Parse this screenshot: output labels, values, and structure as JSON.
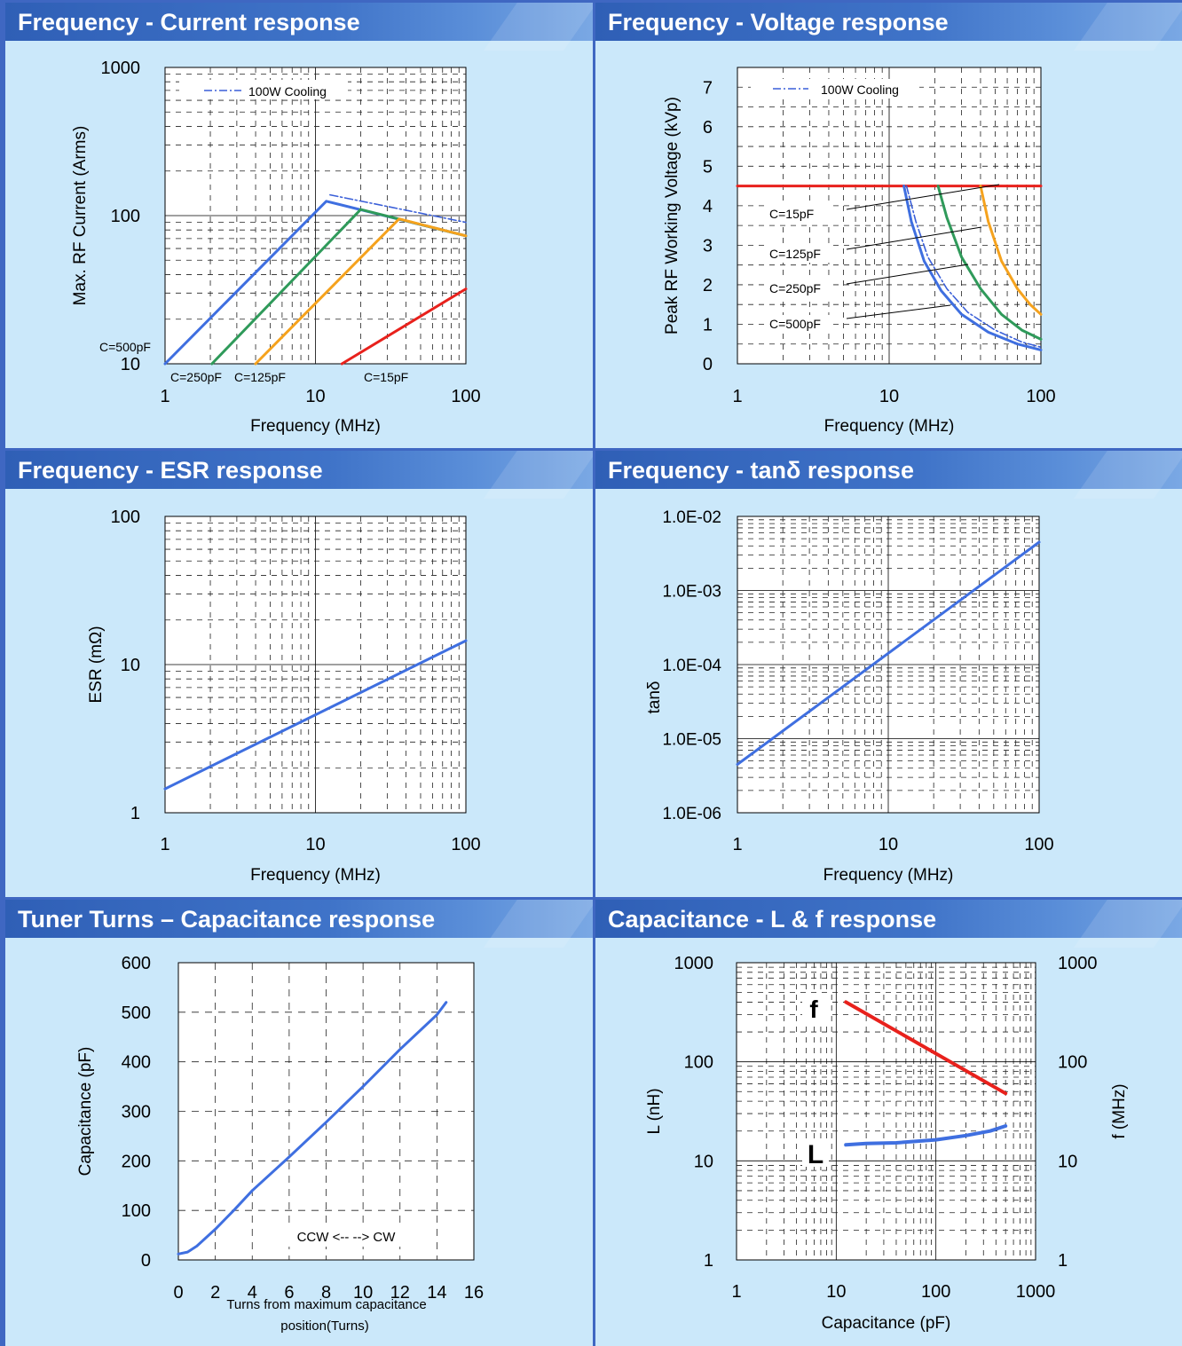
{
  "colors": {
    "panel_bg": "#cbe8fa",
    "header": "#3a6cc2",
    "blue": "#3f6fe0",
    "green": "#2f9a5a",
    "orange": "#f5a21d",
    "red": "#e8211c"
  },
  "chart_data": [
    {
      "type": "line",
      "title": "Frequency - Current response",
      "xlabel": "Frequency (MHz)",
      "ylabel": "Max. RF Current (Arms)",
      "xscale": "log",
      "yscale": "log",
      "xlim": [
        1,
        100
      ],
      "ylim": [
        10,
        1000
      ],
      "x_ticks": [
        "1",
        "10",
        "100"
      ],
      "y_ticks": [
        "10",
        "100",
        "1000"
      ],
      "legend": {
        "label": "100W Cooling",
        "position": "top-left"
      },
      "series": [
        {
          "name": "100W Cooling",
          "color": "#3a5fd8",
          "style": "dashdot",
          "x": [
            12.5,
            100
          ],
          "y": [
            138,
            90
          ]
        },
        {
          "name": "C=500pF",
          "color": "#3f6fe0",
          "x": [
            1,
            11.8,
            100
          ],
          "y": [
            10,
            125,
            73
          ]
        },
        {
          "name": "C=250pF",
          "color": "#2f9a5a",
          "x": [
            2.05,
            20,
            100
          ],
          "y": [
            10,
            110,
            73
          ]
        },
        {
          "name": "C=125pF",
          "color": "#f5a21d",
          "x": [
            4,
            36,
            100
          ],
          "y": [
            10,
            95,
            73
          ]
        },
        {
          "name": "C=15pF",
          "color": "#e8211c",
          "x": [
            15,
            100
          ],
          "y": [
            10,
            32
          ]
        }
      ],
      "annotations": [
        "C=500pF",
        "C=250pF",
        "C=125pF",
        "C=15pF"
      ]
    },
    {
      "type": "line",
      "title": "Frequency - Voltage response",
      "xlabel": "Frequency (MHz)",
      "ylabel": "Peak RF Working Voltage (kVp)",
      "xscale": "log",
      "yscale": "linear",
      "xlim": [
        1,
        100
      ],
      "ylim": [
        0,
        7.5
      ],
      "x_ticks": [
        "1",
        "10",
        "100"
      ],
      "y_ticks": [
        "0",
        "1",
        "2",
        "3",
        "4",
        "5",
        "6",
        "7"
      ],
      "legend": {
        "label": "100W Cooling",
        "position": "top-left"
      },
      "series": [
        {
          "name": "C=15pF",
          "color": "#e8211c",
          "x": [
            1,
            100
          ],
          "y": [
            4.5,
            4.5
          ]
        },
        {
          "name": "C=125pF",
          "color": "#f5a21d",
          "x": [
            40,
            45,
            55,
            70,
            85,
            100
          ],
          "y": [
            4.5,
            3.6,
            2.6,
            1.9,
            1.5,
            1.25
          ]
        },
        {
          "name": "C=250pF",
          "color": "#2f9a5a",
          "x": [
            21,
            24,
            30,
            40,
            55,
            75,
            100
          ],
          "y": [
            4.5,
            3.7,
            2.7,
            1.9,
            1.25,
            0.85,
            0.62
          ]
        },
        {
          "name": "C=500pF",
          "color": "#3f6fe0",
          "x": [
            12.5,
            14,
            17,
            22,
            30,
            45,
            70,
            100
          ],
          "y": [
            4.5,
            3.6,
            2.6,
            1.85,
            1.25,
            0.8,
            0.5,
            0.35
          ]
        },
        {
          "name": "100W Cooling",
          "color": "#3a5fd8",
          "style": "dashdot",
          "x": [
            13,
            15,
            18,
            24,
            33,
            50,
            75,
            100
          ],
          "y": [
            4.5,
            3.6,
            2.7,
            1.9,
            1.3,
            0.85,
            0.55,
            0.42
          ]
        }
      ],
      "annotations": [
        "C=15pF",
        "C=125pF",
        "C=250pF",
        "C=500pF"
      ]
    },
    {
      "type": "line",
      "title": "Frequency - ESR response",
      "xlabel": "Frequency (MHz)",
      "ylabel": "ESR (mΩ)",
      "xscale": "log",
      "yscale": "log",
      "xlim": [
        1,
        100
      ],
      "ylim": [
        1,
        100
      ],
      "x_ticks": [
        "1",
        "10",
        "100"
      ],
      "y_ticks": [
        "1",
        "10",
        "100"
      ],
      "series": [
        {
          "color": "#3f6fe0",
          "x": [
            1,
            100
          ],
          "y": [
            1.45,
            14.5
          ]
        }
      ]
    },
    {
      "type": "line",
      "title": "Frequency - tanδ  response",
      "xlabel": "Frequency (MHz)",
      "ylabel": "tanδ",
      "xscale": "log",
      "yscale": "log",
      "xlim": [
        1,
        100
      ],
      "ylim": [
        1e-06,
        0.01
      ],
      "x_ticks": [
        "1",
        "10",
        "100"
      ],
      "y_ticks": [
        "1.0E-06",
        "1.0E-05",
        "1.0E-04",
        "1.0E-03",
        "1.0E-02"
      ],
      "series": [
        {
          "color": "#3f6fe0",
          "x": [
            1,
            100
          ],
          "y": [
            4.5e-06,
            0.0045
          ]
        }
      ]
    },
    {
      "type": "line",
      "title": "Tuner Turns – Capacitance response",
      "xlabel": "Turns from maximum capacitance position(Turns)",
      "ylabel": "Capacitance (pF)",
      "xlim": [
        0,
        16
      ],
      "ylim": [
        0,
        600
      ],
      "x_ticks": [
        "0",
        "2",
        "4",
        "6",
        "8",
        "10",
        "12",
        "14",
        "16"
      ],
      "y_ticks": [
        "0",
        "100",
        "200",
        "300",
        "400",
        "500",
        "600"
      ],
      "annotation": "CCW <-- --> CW",
      "series": [
        {
          "color": "#3f6fe0",
          "x": [
            0,
            0.5,
            1,
            1.5,
            2,
            3,
            4,
            6,
            8,
            10,
            12,
            14,
            14.5
          ],
          "y": [
            12,
            16,
            28,
            45,
            62,
            100,
            140,
            208,
            278,
            350,
            425,
            495,
            520
          ]
        }
      ]
    },
    {
      "type": "line",
      "title": "Capacitance - L & f response",
      "xlabel": "Capacitance (pF)",
      "ylabel": "L (nH)",
      "y2label": "f (MHz)",
      "xscale": "log",
      "yscale": "log",
      "xlim": [
        1,
        1000
      ],
      "ylim": [
        1,
        1000
      ],
      "x_ticks": [
        "1",
        "10",
        "100",
        "1000"
      ],
      "y_ticks": [
        "1",
        "10",
        "100",
        "1000"
      ],
      "y2_ticks": [
        "1",
        "10",
        "100",
        "1000"
      ],
      "series": [
        {
          "name": "f",
          "color": "#e8211c",
          "x": [
            12.5,
            500
          ],
          "y": [
            400,
            48
          ]
        },
        {
          "name": "L",
          "color": "#3f6fe0",
          "x": [
            12.5,
            20,
            40,
            100,
            200,
            350,
            500
          ],
          "y": [
            14.5,
            15,
            15.2,
            16.3,
            18,
            20,
            22.5
          ]
        }
      ]
    }
  ]
}
